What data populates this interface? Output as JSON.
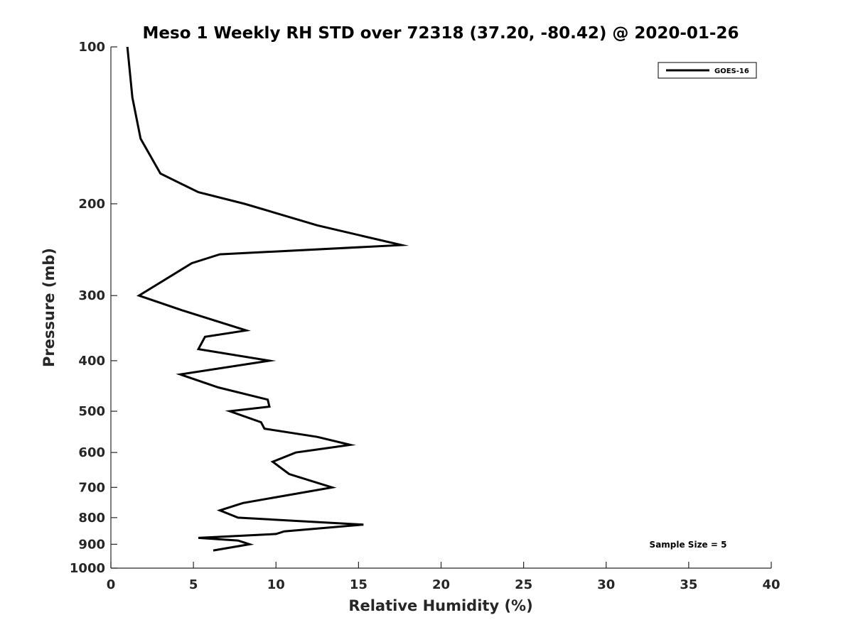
{
  "chart_data": {
    "type": "line",
    "title": "Meso 1 Weekly RH STD over 72318 (37.20, -80.42) @ 2020-01-26",
    "xlabel": "Relative Humidity (%)",
    "ylabel": "Pressure (mb)",
    "xlim": [
      0,
      40
    ],
    "ylim": [
      100,
      1000
    ],
    "y_scale": "log",
    "y_reversed": true,
    "xticks": [
      0,
      5,
      10,
      15,
      20,
      25,
      30,
      35,
      40
    ],
    "yticks": [
      100,
      200,
      300,
      400,
      500,
      600,
      700,
      800,
      900,
      1000
    ],
    "grid": false,
    "legend_position": "top-right",
    "annotation": "Sample Size = 5",
    "series": [
      {
        "name": "GOES-16",
        "color": "#000000",
        "points": [
          [
            1.0,
            100
          ],
          [
            1.3,
            125
          ],
          [
            1.8,
            150
          ],
          [
            3.0,
            175
          ],
          [
            5.3,
            190
          ],
          [
            8.1,
            200
          ],
          [
            12.5,
            220
          ],
          [
            17.6,
            240
          ],
          [
            6.6,
            250
          ],
          [
            4.9,
            260
          ],
          [
            1.7,
            300
          ],
          [
            4.3,
            320
          ],
          [
            8.2,
            350
          ],
          [
            5.7,
            360
          ],
          [
            5.3,
            380
          ],
          [
            9.6,
            400
          ],
          [
            4.2,
            425
          ],
          [
            6.5,
            450
          ],
          [
            9.5,
            475
          ],
          [
            9.6,
            490
          ],
          [
            7.2,
            500
          ],
          [
            9.1,
            525
          ],
          [
            9.3,
            540
          ],
          [
            12.5,
            560
          ],
          [
            14.5,
            580
          ],
          [
            11.2,
            600
          ],
          [
            9.8,
            625
          ],
          [
            10.8,
            660
          ],
          [
            13.4,
            700
          ],
          [
            8.0,
            750
          ],
          [
            6.6,
            775
          ],
          [
            7.7,
            800
          ],
          [
            15.3,
            825
          ],
          [
            10.5,
            850
          ],
          [
            10.0,
            860
          ],
          [
            5.3,
            875
          ],
          [
            7.7,
            885
          ],
          [
            8.4,
            900
          ],
          [
            6.2,
            925
          ]
        ]
      }
    ]
  }
}
